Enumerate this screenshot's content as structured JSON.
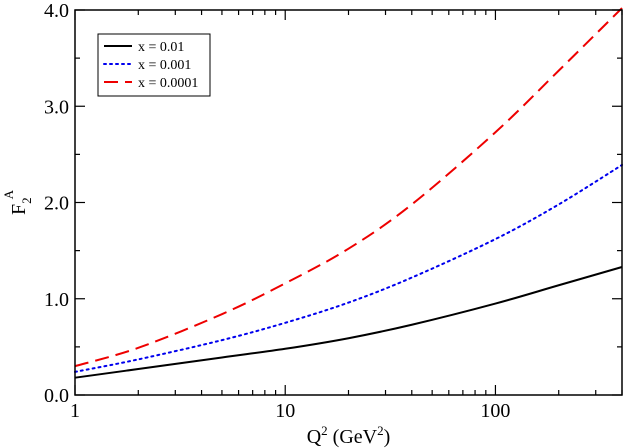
{
  "chart_data": {
    "type": "line",
    "xscale": "log",
    "xlim": [
      1,
      400
    ],
    "ylim": [
      0.0,
      4.0
    ],
    "xticks": [
      1,
      10,
      100
    ],
    "xtick_labels": [
      "1",
      "10",
      "100"
    ],
    "yticks": [
      0.0,
      1.0,
      2.0,
      3.0,
      4.0
    ],
    "ytick_labels": [
      "0.0",
      "1.0",
      "2.0",
      "3.0",
      "4.0"
    ],
    "xlabel": {
      "base": "Q",
      "sup": "2",
      "units_open": " (GeV",
      "units_sup": "2",
      "units_close": ")"
    },
    "ylabel": {
      "base": "F",
      "sub": "2",
      "sup": "A"
    },
    "legend_position": "top-left",
    "series": [
      {
        "name": "x = 0.01",
        "color": "#000000",
        "style": "solid",
        "x": [
          1,
          2,
          5,
          10,
          20,
          40,
          100,
          200,
          400
        ],
        "y": [
          0.18,
          0.27,
          0.39,
          0.48,
          0.59,
          0.73,
          0.95,
          1.14,
          1.33
        ]
      },
      {
        "name": "x = 0.001",
        "color": "#0000ee",
        "style": "dotted",
        "x": [
          1,
          2,
          5,
          10,
          20,
          40,
          100,
          200,
          400
        ],
        "y": [
          0.24,
          0.37,
          0.57,
          0.75,
          0.96,
          1.22,
          1.62,
          1.98,
          2.39
        ]
      },
      {
        "name": "x = 0.0001",
        "color": "#ee0000",
        "style": "dashed",
        "x": [
          1,
          2,
          5,
          10,
          20,
          40,
          100,
          200,
          400
        ],
        "y": [
          0.3,
          0.49,
          0.84,
          1.16,
          1.52,
          1.98,
          2.73,
          3.37,
          4.02
        ]
      }
    ]
  }
}
